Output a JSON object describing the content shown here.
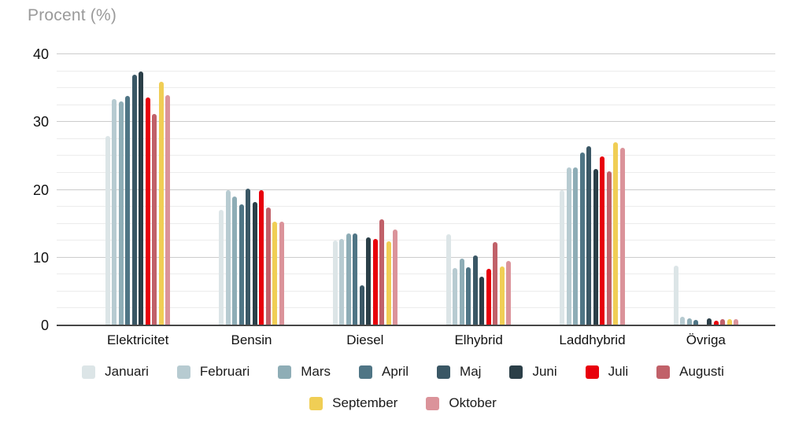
{
  "title": "Procent (%)",
  "chart_data": {
    "type": "bar",
    "title": "Procent (%)",
    "ylabel": "Procent (%)",
    "xlabel": "",
    "ylim": [
      0,
      40
    ],
    "y_major_ticks": [
      40,
      30,
      20,
      10,
      0
    ],
    "y_minor_interval": 2.5,
    "grid": true,
    "legend_position": "bottom",
    "categories": [
      "Elektricitet",
      "Bensin",
      "Diesel",
      "Elhybrid",
      "Laddhybrid",
      "Övriga"
    ],
    "series": [
      {
        "name": "Januari",
        "color": "#dce5e7",
        "values": [
          28,
          17,
          12.5,
          13.4,
          20,
          8.8
        ]
      },
      {
        "name": "Februari",
        "color": "#b7cbd1",
        "values": [
          33.4,
          20,
          12.8,
          8.5,
          23.3,
          1.3
        ]
      },
      {
        "name": "Mars",
        "color": "#8eadb6",
        "values": [
          33.1,
          19,
          13.6,
          9.8,
          23.3,
          1.1
        ]
      },
      {
        "name": "April",
        "color": "#4f7585",
        "values": [
          33.8,
          17.9,
          13.6,
          8.6,
          25.5,
          0.8
        ]
      },
      {
        "name": "Maj",
        "color": "#3a5765",
        "values": [
          37,
          20.2,
          5.9,
          10.3,
          26.4,
          0
        ]
      },
      {
        "name": "Juni",
        "color": "#2b3f48",
        "values": [
          37.4,
          18.2,
          13,
          7.2,
          23.1,
          1.1
        ]
      },
      {
        "name": "Juli",
        "color": "#e8000b",
        "values": [
          33.6,
          20,
          12.7,
          8.3,
          24.9,
          0.7
        ]
      },
      {
        "name": "Augusti",
        "color": "#c16169",
        "values": [
          31.2,
          17.4,
          15.7,
          12.3,
          22.7,
          0.9
        ]
      },
      {
        "name": "September",
        "color": "#f0ce55",
        "values": [
          36,
          15.3,
          12.4,
          8.7,
          27,
          0.9
        ]
      },
      {
        "name": "Oktober",
        "color": "#db939a",
        "values": [
          34,
          15.3,
          14.2,
          9.5,
          26.2,
          0.9
        ]
      }
    ],
    "legend_rows": [
      [
        "Januari",
        "Februari",
        "Mars",
        "April",
        "Maj",
        "Juni",
        "Juli",
        "Augusti"
      ],
      [
        "September",
        "Oktober"
      ]
    ]
  }
}
